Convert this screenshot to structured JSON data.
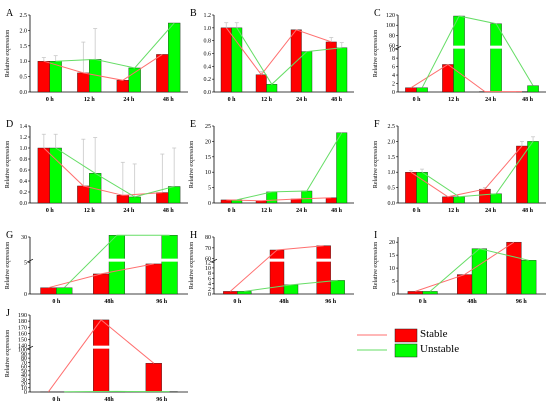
{
  "legend": {
    "items": [
      {
        "label": "Stable",
        "color": "#ff0000"
      },
      {
        "label": "Unstable",
        "color": "#00ff00"
      }
    ]
  },
  "colors": {
    "stable_bar": "#ff0000",
    "unstable_bar": "#00ff00",
    "stable_line": "#ff6f6f",
    "unstable_line": "#66dd66",
    "error_bar": "#c8c8c8"
  },
  "chart_data": [
    {
      "panel": "A",
      "type": "bar",
      "categories": [
        "0 h",
        "12 h",
        "24 h",
        "48 h"
      ],
      "ylabel": "Relative expression",
      "ylim": [
        0,
        2.5
      ],
      "yticks": [
        0.0,
        0.5,
        1.0,
        1.5,
        2.0,
        2.5
      ],
      "series": [
        {
          "name": "Stable",
          "values": [
            1.0,
            0.62,
            0.38,
            1.22
          ],
          "errors": [
            0.12,
            1.0,
            0.0,
            0.0
          ]
        },
        {
          "name": "Unstable",
          "values": [
            1.0,
            1.06,
            0.78,
            2.24
          ],
          "errors": [
            0.18,
            1.0,
            0.0,
            0.0
          ]
        }
      ],
      "lines": true
    },
    {
      "panel": "B",
      "type": "bar",
      "categories": [
        "0 h",
        "12 h",
        "24 h",
        "48 h"
      ],
      "ylabel": "",
      "ylim": [
        0,
        1.2
      ],
      "yticks": [
        0.0,
        0.2,
        0.4,
        0.6,
        0.8,
        1.0,
        1.2
      ],
      "series": [
        {
          "name": "Stable",
          "values": [
            1.0,
            0.27,
            0.97,
            0.78
          ],
          "errors": [
            0.08,
            0.05,
            0.0,
            0.07
          ]
        },
        {
          "name": "Unstable",
          "values": [
            1.0,
            0.12,
            0.63,
            0.69
          ],
          "errors": [
            0.08,
            0.0,
            0.0,
            0.08
          ]
        }
      ],
      "lines": true
    },
    {
      "panel": "C",
      "type": "bar",
      "categories": [
        "0 h",
        "12 h",
        "24 h",
        "48 h"
      ],
      "ylabel": "Relative expression",
      "broken_axis": {
        "lower": [
          0,
          10
        ],
        "upper": [
          60,
          120
        ]
      },
      "yticks_lower": [
        0,
        2,
        4,
        6,
        8,
        10
      ],
      "yticks_upper": [
        60,
        80,
        100,
        120
      ],
      "series": [
        {
          "name": "Stable",
          "values": [
            1.0,
            6.5,
            0.1,
            0.1
          ]
        },
        {
          "name": "Unstable",
          "values": [
            1.0,
            118,
            103,
            1.5
          ]
        }
      ],
      "lines": true
    },
    {
      "panel": "D",
      "type": "bar",
      "categories": [
        "0 h",
        "12 h",
        "24 h",
        "48 h"
      ],
      "ylabel": "Relative expression",
      "ylim": [
        0,
        1.4
      ],
      "yticks": [
        0.0,
        0.2,
        0.4,
        0.6,
        0.8,
        1.0,
        1.2,
        1.4
      ],
      "series": [
        {
          "name": "Stable",
          "values": [
            1.0,
            0.31,
            0.14,
            0.19
          ],
          "errors": [
            0.25,
            0.85,
            0.6,
            0.7
          ]
        },
        {
          "name": "Unstable",
          "values": [
            1.0,
            0.54,
            0.11,
            0.3
          ],
          "errors": [
            0.25,
            0.65,
            0.6,
            0.7
          ]
        }
      ],
      "lines": true
    },
    {
      "panel": "E",
      "type": "bar",
      "categories": [
        "0 h",
        "12 h",
        "24 h",
        "48 h"
      ],
      "ylabel": "Relative expression",
      "ylim": [
        0,
        25
      ],
      "yticks": [
        0,
        5,
        10,
        15,
        20,
        25
      ],
      "series": [
        {
          "name": "Stable",
          "values": [
            1.0,
            0.7,
            1.3,
            1.7
          ]
        },
        {
          "name": "Unstable",
          "values": [
            1.0,
            3.6,
            3.9,
            22.8
          ]
        }
      ],
      "lines": true
    },
    {
      "panel": "F",
      "type": "bar",
      "categories": [
        "0 h",
        "12 h",
        "24 h",
        "48 h"
      ],
      "ylabel": "Relative expression",
      "ylim": [
        0,
        2.5
      ],
      "yticks": [
        0.0,
        0.5,
        1.0,
        1.5,
        2.0,
        2.5
      ],
      "series": [
        {
          "name": "Stable",
          "values": [
            1.0,
            0.2,
            0.45,
            1.85
          ],
          "errors": [
            0.05,
            0.0,
            0.05,
            0.15
          ]
        },
        {
          "name": "Unstable",
          "values": [
            1.0,
            0.2,
            0.3,
            2.0
          ],
          "errors": [
            0.1,
            0.0,
            0.0,
            0.15
          ]
        }
      ],
      "lines": true
    },
    {
      "panel": "G",
      "type": "bar",
      "categories": [
        "0 h",
        "48h",
        "96 h"
      ],
      "ylabel": "Relative expression",
      "broken_axis": {
        "lower": [
          0,
          5
        ],
        "upper": [
          24,
          30
        ]
      },
      "yticks_lower": [
        0,
        5
      ],
      "yticks_upper": [
        30
      ],
      "series": [
        {
          "name": "Stable",
          "values": [
            1.0,
            3.2,
            4.8
          ]
        },
        {
          "name": "Unstable",
          "values": [
            1.0,
            30.5,
            30.5
          ]
        }
      ],
      "lines": true
    },
    {
      "panel": "H",
      "type": "bar",
      "categories": [
        "0 h",
        "48h",
        "96 h"
      ],
      "ylabel": "Relative expression",
      "broken_axis": {
        "lower": [
          0,
          12
        ],
        "upper": [
          60,
          80
        ]
      },
      "yticks_lower": [
        0,
        2,
        4,
        6,
        8,
        10,
        12
      ],
      "yticks_upper": [
        60,
        70,
        80
      ],
      "series": [
        {
          "name": "Stable",
          "values": [
            1.0,
            68,
            72
          ]
        },
        {
          "name": "Unstable",
          "values": [
            1.0,
            3.5,
            5.2
          ]
        }
      ],
      "lines": true
    },
    {
      "panel": "I",
      "type": "bar",
      "categories": [
        "0 h",
        "48h",
        "96 h"
      ],
      "ylabel": "Relative expression",
      "ylim": [
        0,
        22
      ],
      "yticks": [
        0,
        5,
        10,
        15,
        20
      ],
      "series": [
        {
          "name": "Stable",
          "values": [
            1.0,
            7.5,
            20.0
          ]
        },
        {
          "name": "Unstable",
          "values": [
            1.0,
            17.5,
            13.0
          ]
        }
      ],
      "lines": true
    },
    {
      "panel": "J",
      "type": "bar",
      "categories": [
        "0 h",
        "48h",
        "96 h"
      ],
      "ylabel": "Relative expression",
      "broken_axis": {
        "lower": [
          0,
          100
        ],
        "upper": [
          140,
          190
        ]
      },
      "yticks_lower": [
        0,
        10,
        20,
        30,
        40,
        50,
        60,
        70,
        80,
        90,
        100
      ],
      "yticks_upper": [
        140,
        150,
        160,
        170,
        180,
        190
      ],
      "series": [
        {
          "name": "Stable",
          "values": [
            0.5,
            182,
            68
          ]
        },
        {
          "name": "Unstable",
          "values": [
            0.5,
            1.5,
            1.0
          ]
        }
      ],
      "lines": true
    }
  ]
}
